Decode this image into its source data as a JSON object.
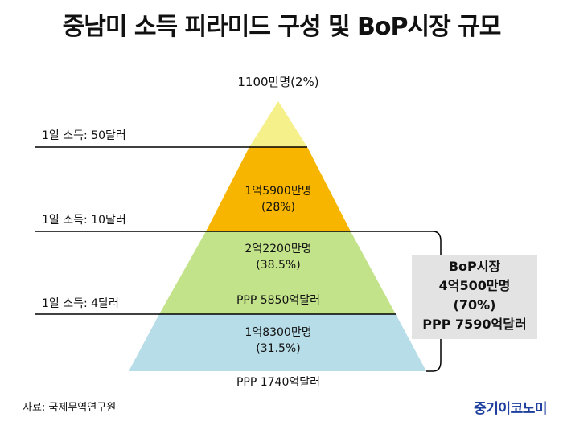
{
  "title": "중남미 소득 피라미드 구성 및 BoP시장 규모",
  "pyramid": {
    "top": {
      "label": "1100만명(2%)",
      "color": "#f5f08a"
    },
    "tier2": {
      "population": "1억5900만명",
      "percent": "(28%)",
      "color": "#f7b500"
    },
    "tier3": {
      "population": "2억2200만명",
      "percent": "(38.5%)",
      "market": "PPP 5850억달러",
      "color": "#c3e38a"
    },
    "tier4": {
      "population": "1억8300만명",
      "percent": "(31.5%)",
      "market": "PPP 1740억달러",
      "color": "#b7dde8"
    }
  },
  "income_lines": [
    {
      "label": "1일 소득:  50달러"
    },
    {
      "label": "1일 소득:  10달러"
    },
    {
      "label": "1일 소득:  4달러"
    }
  ],
  "bop_box": {
    "line1": "BoP시장",
    "line2": "4억500만명",
    "line3": "(70%)",
    "line4": "PPP 7590억달러",
    "background": "#e3e3e3"
  },
  "source": "자료: 국제무역연구원",
  "brand": {
    "text": "중기이코노미",
    "color": "#1e3f9d"
  }
}
